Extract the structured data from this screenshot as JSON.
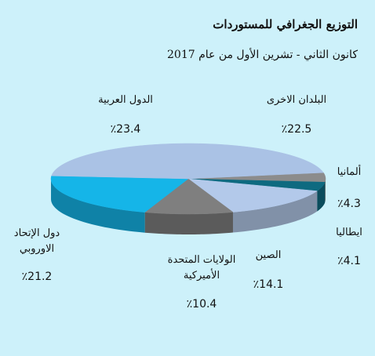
{
  "chart_data": {
    "type": "pie3d",
    "title": "التوزيع الجغرافي للمستوردات",
    "subtitle": "كانون الثاني - تشرين الأول من عام  2017",
    "categories": [
      "ألمانيا",
      "ايطاليا",
      "الصين",
      "الولايات المتحدة الأميركية",
      "دول الإتحاد الاوروبي",
      "الدول العربية",
      "البلدان الاخرى"
    ],
    "values": [
      4.3,
      4.1,
      14.1,
      10.4,
      21.2,
      23.4,
      22.5
    ],
    "value_labels": [
      "٪4.3",
      "٪4.1",
      "٪14.1",
      "٪10.4",
      "٪21.2",
      "٪23.4",
      "٪22.5"
    ],
    "colors": [
      "#8c8c8c",
      "#0e6a80",
      "#b3c9ea",
      "#7f7f7f",
      "#15b5e8",
      "#aac2e5",
      "#aac2e5"
    ]
  }
}
